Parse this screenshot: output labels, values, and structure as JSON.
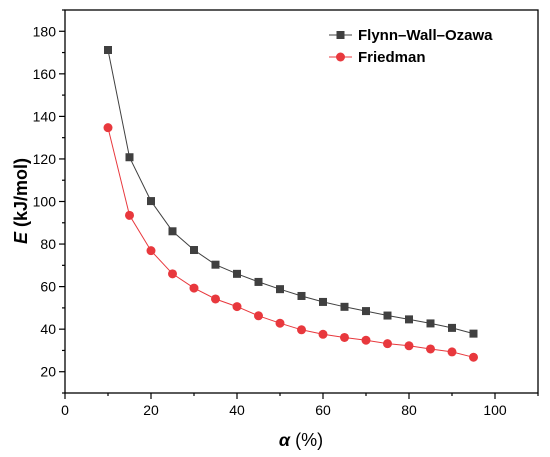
{
  "chart_data": {
    "type": "line",
    "xlabel_symbol": "α",
    "xlabel_unit": " (%)",
    "ylabel_symbol": "E",
    "ylabel_unit": " (kJ/mol)",
    "xlim": [
      0,
      110
    ],
    "ylim": [
      10,
      190
    ],
    "xticks": [
      0,
      20,
      40,
      60,
      80,
      100
    ],
    "yticks": [
      20,
      40,
      60,
      80,
      100,
      120,
      140,
      160,
      180
    ],
    "grid": false,
    "legend_position": "top-right",
    "series": [
      {
        "name": "Flynn–Wall–Ozawa",
        "color": "#404040",
        "marker": "square",
        "x": [
          10,
          15,
          20,
          25,
          30,
          35,
          40,
          45,
          50,
          55,
          60,
          65,
          70,
          75,
          80,
          85,
          90,
          95
        ],
        "y": [
          171.2,
          120.8,
          100.2,
          86.0,
          77.2,
          70.3,
          66.0,
          62.2,
          58.8,
          55.6,
          52.8,
          50.5,
          48.5,
          46.4,
          44.6,
          42.7,
          40.6,
          37.9
        ]
      },
      {
        "name": "Friedman",
        "color": "#e8383d",
        "marker": "circle",
        "x": [
          10,
          15,
          20,
          25,
          30,
          35,
          40,
          45,
          50,
          55,
          60,
          65,
          70,
          75,
          80,
          85,
          90,
          95
        ],
        "y": [
          134.7,
          93.5,
          76.9,
          66.0,
          59.3,
          54.2,
          50.6,
          46.3,
          42.8,
          39.7,
          37.6,
          36.1,
          34.8,
          33.2,
          32.2,
          30.7,
          29.3,
          26.8
        ]
      }
    ]
  }
}
